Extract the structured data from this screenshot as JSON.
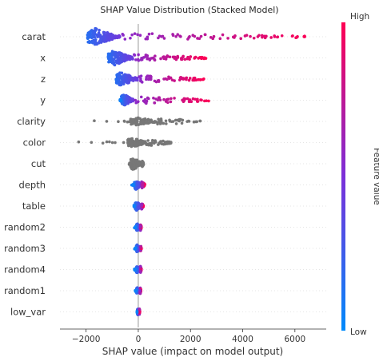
{
  "chart_data": {
    "type": "scatter",
    "title": "SHAP Value Distribution (Stacked Model)",
    "xlabel": "SHAP value (impact on model output)",
    "xlim": [
      -3000,
      7200
    ],
    "xticks": [
      -2000,
      0,
      2000,
      4000,
      6000
    ],
    "colorbar": {
      "label": "Feature value",
      "high": "High",
      "low": "Low",
      "low_color": "#008afb",
      "high_color": "#ff0052"
    },
    "features": [
      {
        "name": "carat",
        "colored": true,
        "min": -1950,
        "max": 6650,
        "core": [
          -1950,
          -700
        ],
        "spread": 1.0
      },
      {
        "name": "x",
        "colored": true,
        "min": -1150,
        "max": 2600,
        "core": [
          -1150,
          -200
        ],
        "spread": 0.9
      },
      {
        "name": "z",
        "colored": true,
        "min": -850,
        "max": 2550,
        "core": [
          -850,
          0
        ],
        "spread": 0.8
      },
      {
        "name": "y",
        "colored": true,
        "min": -700,
        "max": 2800,
        "core": [
          -650,
          -200
        ],
        "spread": 0.7
      },
      {
        "name": "clarity",
        "colored": false,
        "min": -1700,
        "max": 2400,
        "core": [
          -300,
          700
        ],
        "spread": 0.4
      },
      {
        "name": "color",
        "colored": false,
        "min": -2500,
        "max": 1300,
        "core": [
          -400,
          300
        ],
        "spread": 0.5
      },
      {
        "name": "cut",
        "colored": false,
        "min": -350,
        "max": 200,
        "core": [
          -300,
          150
        ],
        "spread": 0.7
      },
      {
        "name": "depth",
        "colored": true,
        "min": -280,
        "max": 250,
        "core": [
          -150,
          120
        ],
        "spread": 0.5
      },
      {
        "name": "table",
        "colored": true,
        "min": -200,
        "max": 200,
        "core": [
          -120,
          120
        ],
        "spread": 0.45
      },
      {
        "name": "random2",
        "colored": true,
        "min": -150,
        "max": 120,
        "core": [
          -80,
          80
        ],
        "spread": 0.35
      },
      {
        "name": "random3",
        "colored": true,
        "min": -150,
        "max": 120,
        "core": [
          -80,
          80
        ],
        "spread": 0.35
      },
      {
        "name": "random4",
        "colored": true,
        "min": -150,
        "max": 120,
        "core": [
          -80,
          80
        ],
        "spread": 0.35
      },
      {
        "name": "random1",
        "colored": true,
        "min": -120,
        "max": 100,
        "core": [
          -70,
          70
        ],
        "spread": 0.3
      },
      {
        "name": "low_var",
        "colored": true,
        "min": -60,
        "max": 60,
        "core": [
          -40,
          40
        ],
        "spread": 0.3
      }
    ]
  }
}
